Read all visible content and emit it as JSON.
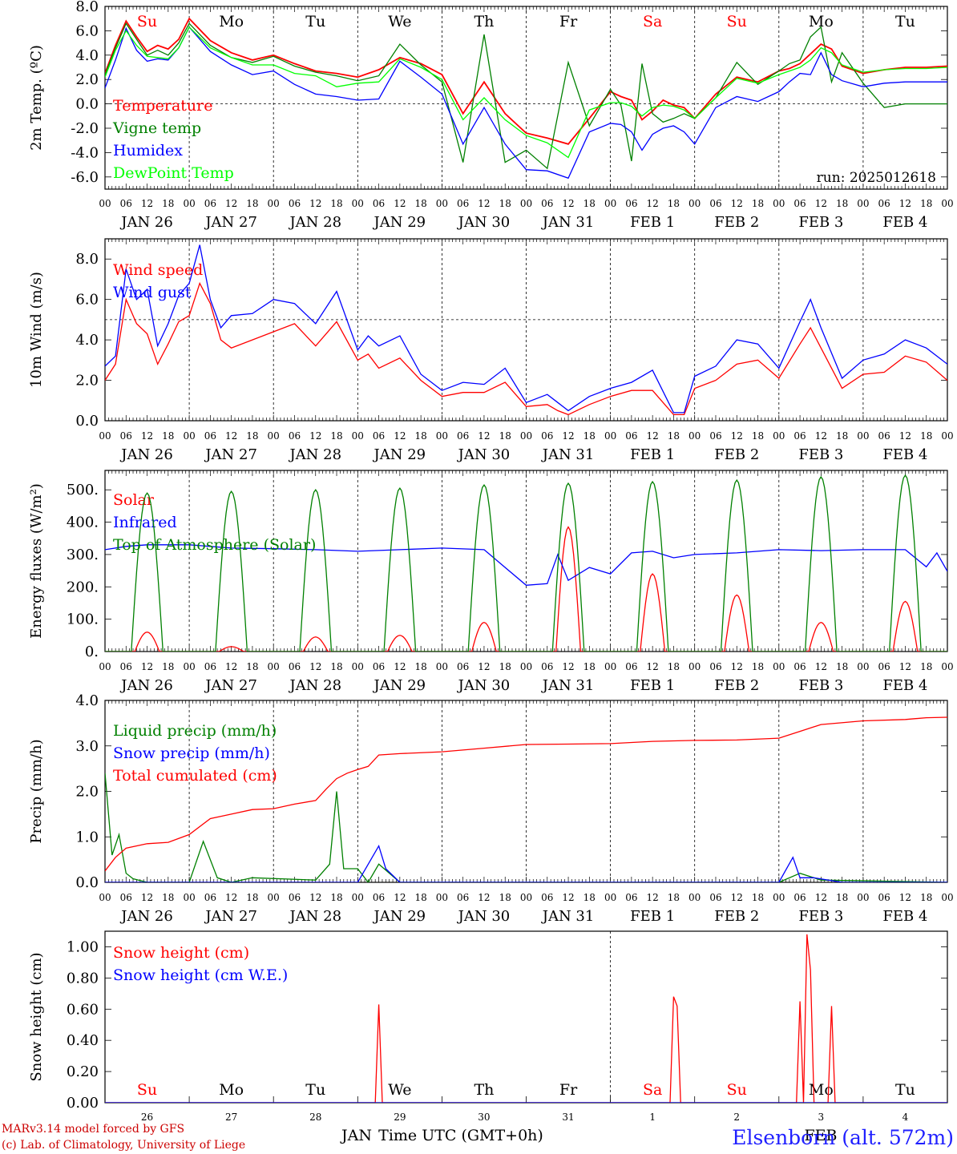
{
  "run_label": "run: 2025012618",
  "station": "Elsenborn (alt. 572m)",
  "credits": [
    "MARv3.14 model forced by GFS",
    "(c) Lab. of Climatology, University of Liege"
  ],
  "xaxis": {
    "hour_labels": [
      "00",
      "06",
      "12",
      "18"
    ],
    "final_hour_label": "00",
    "date_labels": [
      "JAN 26",
      "JAN 27",
      "JAN 28",
      "JAN 29",
      "JAN 30",
      "JAN 31",
      "FEB  1",
      "FEB  2",
      "FEB  3",
      "FEB  4"
    ],
    "day_names": [
      "Su",
      "Mo",
      "Tu",
      "We",
      "Th",
      "Fr",
      "Sa",
      "Su",
      "Mo",
      "Tu"
    ],
    "weekend_color": "#ff0000",
    "weekday_color": "#000000",
    "bottom_day_numbers": [
      "26",
      "27",
      "28",
      "29",
      "30",
      "31",
      "1",
      "2",
      "3",
      "4"
    ],
    "bottom_month_labels": [
      "JAN",
      "FEB"
    ],
    "bottom_title": "Time UTC (GMT+0h)"
  },
  "chart_data": [
    {
      "type": "line",
      "ylabel": "2m Temp. (ºC)",
      "ylim": [
        -7,
        8
      ],
      "ticks": [
        "-6.0",
        "-4.0",
        "-2.0",
        "0.0",
        "2.0",
        "4.0",
        "6.0",
        "8.0"
      ],
      "tick_values": [
        -6,
        -4,
        -2,
        0,
        2,
        4,
        6,
        8
      ],
      "ref_line": 0,
      "x_hours": [
        0,
        3,
        6,
        9,
        12,
        15,
        18,
        21,
        24,
        30,
        36,
        42,
        48,
        54,
        60,
        66,
        72,
        78,
        84,
        90,
        96,
        102,
        108,
        114,
        120,
        126,
        132,
        138,
        144,
        147,
        150,
        153,
        156,
        159,
        162,
        165,
        168,
        174,
        180,
        186,
        192,
        195,
        198,
        201,
        204,
        207,
        210,
        216,
        222,
        228,
        234,
        240
      ],
      "series": [
        {
          "name": "Temperature",
          "color": "#ff0000",
          "values": [
            2.5,
            4.8,
            6.8,
            5.5,
            4.3,
            4.8,
            4.5,
            5.3,
            7.0,
            5.2,
            4.2,
            3.6,
            4.0,
            3.3,
            2.7,
            2.5,
            2.2,
            2.8,
            3.8,
            3.3,
            2.4,
            -0.8,
            1.8,
            -0.8,
            -2.4,
            -2.8,
            -3.3,
            -1.2,
            1.0,
            0.6,
            0.3,
            -1.3,
            -0.6,
            0.3,
            -0.1,
            -0.3,
            -1.2,
            0.8,
            2.2,
            1.8,
            2.7,
            2.9,
            3.3,
            4.1,
            4.9,
            4.5,
            3.1,
            2.5,
            2.8,
            3.0,
            3.0,
            3.1
          ]
        },
        {
          "name": "Vigne temp",
          "color": "#008000",
          "values": [
            2.4,
            4.6,
            6.6,
            5.3,
            4.0,
            4.4,
            4.0,
            5.0,
            6.6,
            4.8,
            3.8,
            3.4,
            3.9,
            3.1,
            2.6,
            2.3,
            1.9,
            2.3,
            4.9,
            3.2,
            1.8,
            -4.8,
            5.7,
            -4.8,
            -3.8,
            -5.3,
            3.4,
            -1.8,
            1.2,
            -0.1,
            -4.7,
            3.3,
            -0.8,
            -1.5,
            -1.2,
            -0.8,
            -1.2,
            0.5,
            3.4,
            1.6,
            2.7,
            3.3,
            3.6,
            5.5,
            6.3,
            1.8,
            4.2,
            1.7,
            -0.3,
            0.0,
            0.0,
            0.0
          ]
        },
        {
          "name": "Humidex",
          "color": "#0000ff",
          "values": [
            1.3,
            3.6,
            6.2,
            4.4,
            3.5,
            3.7,
            3.6,
            4.6,
            6.3,
            4.3,
            3.2,
            2.4,
            2.7,
            1.6,
            0.8,
            0.6,
            0.3,
            0.4,
            3.5,
            2.2,
            0.8,
            -3.3,
            -0.3,
            -3.3,
            -5.4,
            -5.5,
            -6.1,
            -2.3,
            -1.6,
            -1.7,
            -2.3,
            -3.8,
            -2.5,
            -2.0,
            -1.8,
            -2.3,
            -3.3,
            -0.3,
            0.6,
            0.2,
            1.0,
            1.8,
            2.5,
            2.4,
            4.2,
            2.4,
            1.9,
            1.4,
            1.7,
            1.8,
            1.8,
            1.8
          ]
        },
        {
          "name": "DewPoint Temp",
          "color": "#00ff00",
          "values": [
            2.2,
            4.4,
            6.0,
            4.8,
            3.9,
            3.8,
            3.7,
            4.6,
            6.3,
            4.6,
            3.8,
            3.2,
            3.2,
            2.5,
            2.3,
            1.4,
            1.7,
            1.8,
            3.7,
            3.0,
            2.0,
            -1.3,
            0.5,
            -1.3,
            -2.6,
            -3.2,
            -4.4,
            -0.5,
            0.1,
            0.1,
            -0.2,
            -1.0,
            -0.3,
            -0.1,
            -0.2,
            -0.5,
            -1.2,
            0.5,
            2.1,
            1.7,
            2.4,
            2.7,
            3.0,
            3.6,
            4.6,
            4.2,
            3.2,
            2.6,
            2.8,
            2.9,
            2.9,
            3.0
          ]
        }
      ],
      "legend_placement": "top-left"
    },
    {
      "type": "line",
      "ylabel": "10m Wind (m/s)",
      "ylim": [
        0,
        9
      ],
      "ticks": [
        "0.0",
        "2.0",
        "4.0",
        "6.0",
        "8.0"
      ],
      "tick_values": [
        0,
        2,
        4,
        6,
        8
      ],
      "ref_line": 5,
      "x_hours": [
        0,
        3,
        6,
        9,
        12,
        15,
        18,
        21,
        24,
        27,
        30,
        33,
        36,
        42,
        48,
        54,
        60,
        66,
        72,
        75,
        78,
        84,
        90,
        96,
        102,
        108,
        114,
        120,
        126,
        129,
        132,
        138,
        144,
        150,
        156,
        162,
        165,
        168,
        174,
        180,
        186,
        192,
        198,
        201,
        204,
        210,
        216,
        222,
        228,
        234,
        240
      ],
      "series": [
        {
          "name": "Wind speed",
          "color": "#ff0000",
          "values": [
            2.0,
            2.8,
            6.0,
            4.8,
            4.3,
            2.8,
            3.8,
            4.9,
            5.2,
            6.8,
            5.8,
            4.0,
            3.6,
            4.0,
            4.4,
            4.8,
            3.7,
            4.9,
            3.0,
            3.3,
            2.6,
            3.1,
            2.0,
            1.2,
            1.4,
            1.4,
            1.9,
            0.7,
            0.8,
            0.5,
            0.3,
            0.8,
            1.2,
            1.5,
            1.5,
            0.3,
            0.3,
            1.6,
            2.0,
            2.8,
            3.0,
            2.1,
            3.8,
            4.6,
            3.6,
            1.6,
            2.3,
            2.4,
            3.2,
            2.9,
            2.0
          ]
        },
        {
          "name": "Wind gust",
          "color": "#0000ff",
          "values": [
            2.7,
            3.2,
            7.5,
            6.0,
            6.5,
            3.7,
            4.8,
            6.2,
            6.8,
            8.7,
            6.0,
            4.6,
            5.2,
            5.3,
            6.0,
            5.8,
            4.8,
            6.4,
            3.5,
            4.2,
            3.7,
            4.2,
            2.3,
            1.5,
            1.9,
            1.8,
            2.6,
            0.9,
            1.3,
            0.9,
            0.5,
            1.2,
            1.6,
            1.9,
            2.5,
            0.4,
            0.4,
            2.2,
            2.7,
            4.0,
            3.8,
            2.6,
            4.9,
            6.0,
            4.6,
            2.1,
            3.0,
            3.3,
            4.0,
            3.6,
            2.8
          ]
        }
      ],
      "legend_placement": "top-left"
    },
    {
      "type": "line",
      "ylabel": "Energy fluxes (W/m²)",
      "ylim": [
        0,
        560
      ],
      "ticks": [
        "0.",
        "100.",
        "200.",
        "300.",
        "400.",
        "500."
      ],
      "tick_values": [
        0,
        100,
        200,
        300,
        400,
        500
      ],
      "series": [
        {
          "name": "Solar",
          "color": "#ff0000",
          "peaks": [
            60,
            15,
            45,
            50,
            90,
            385,
            240,
            175,
            90,
            155
          ]
        },
        {
          "name": "Infrared",
          "color": "#0000ff",
          "x_hours": [
            0,
            6,
            12,
            24,
            36,
            48,
            60,
            72,
            84,
            96,
            108,
            120,
            126,
            129,
            132,
            138,
            144,
            150,
            156,
            162,
            168,
            180,
            192,
            204,
            216,
            228,
            234,
            237,
            240
          ],
          "values": [
            315,
            325,
            330,
            330,
            320,
            318,
            315,
            310,
            315,
            320,
            315,
            205,
            210,
            300,
            220,
            260,
            240,
            305,
            310,
            290,
            300,
            305,
            315,
            312,
            315,
            315,
            262,
            305,
            248
          ]
        },
        {
          "name": "Top of Atmosphere (Solar)",
          "color": "#008000",
          "peaks": [
            490,
            495,
            500,
            505,
            515,
            520,
            525,
            530,
            540,
            545
          ]
        }
      ],
      "legend_placement": "top-left"
    },
    {
      "type": "line",
      "ylabel": "Precip (mm/h)",
      "ylim": [
        0,
        4
      ],
      "ticks": [
        "0.0",
        "1.0",
        "2.0",
        "3.0",
        "4.0"
      ],
      "tick_values": [
        0,
        1,
        2,
        3,
        4
      ],
      "series": [
        {
          "name": "Liquid precip (mm/h)",
          "color": "#008000",
          "x_hours": [
            0,
            2,
            4,
            6,
            8,
            12,
            24,
            28,
            32,
            36,
            42,
            60,
            64,
            66,
            68,
            72,
            75,
            78,
            84,
            96,
            120,
            144,
            192,
            198,
            204,
            240
          ],
          "values": [
            2.4,
            0.6,
            1.05,
            0.2,
            0.08,
            0.0,
            0.0,
            0.9,
            0.1,
            0.0,
            0.1,
            0.05,
            0.4,
            2.0,
            0.3,
            0.3,
            0.0,
            0.4,
            0.0,
            0.0,
            0.0,
            0.0,
            0.0,
            0.2,
            0.05,
            0.0
          ]
        },
        {
          "name": "Snow precip (mm/h)",
          "color": "#0000ff",
          "x_hours": [
            0,
            72,
            78,
            80,
            84,
            120,
            192,
            196,
            198,
            202,
            210,
            240
          ],
          "values": [
            0.0,
            0.0,
            0.8,
            0.3,
            0.0,
            0.0,
            0.0,
            0.55,
            0.1,
            0.1,
            0.0,
            0.0
          ]
        },
        {
          "name": "Total cumulated (cm)",
          "color": "#ff0000",
          "x_hours": [
            0,
            3,
            6,
            12,
            18,
            24,
            30,
            36,
            42,
            48,
            54,
            60,
            63,
            66,
            69,
            72,
            75,
            78,
            84,
            96,
            108,
            120,
            132,
            144,
            156,
            168,
            180,
            192,
            198,
            204,
            216,
            228,
            234,
            240
          ],
          "values": [
            0.25,
            0.55,
            0.75,
            0.85,
            0.88,
            1.05,
            1.4,
            1.5,
            1.6,
            1.62,
            1.72,
            1.8,
            2.05,
            2.28,
            2.4,
            2.48,
            2.55,
            2.8,
            2.83,
            2.87,
            2.95,
            3.03,
            3.04,
            3.05,
            3.1,
            3.12,
            3.13,
            3.17,
            3.32,
            3.47,
            3.55,
            3.58,
            3.62,
            3.63
          ]
        }
      ],
      "legend_placement": "top-left"
    },
    {
      "type": "line",
      "ylabel": "Snow height (cm)",
      "ylim": [
        0,
        1.1
      ],
      "ticks": [
        "0.00",
        "0.20",
        "0.40",
        "0.60",
        "0.80",
        "1.00"
      ],
      "tick_values": [
        0,
        0.2,
        0.4,
        0.6,
        0.8,
        1.0
      ],
      "series": [
        {
          "name": "Snow height (cm)",
          "color": "#ff0000",
          "x_hours": [
            0,
            77,
            78,
            79,
            120,
            161,
            162,
            163,
            164,
            197,
            198,
            199,
            200,
            201,
            202,
            203,
            206,
            207,
            208,
            240
          ],
          "values": [
            0,
            0,
            0.63,
            0,
            0,
            0,
            0.68,
            0.62,
            0,
            0,
            0.65,
            0,
            1.08,
            0.85,
            0,
            0,
            0,
            0.62,
            0,
            0
          ]
        },
        {
          "name": "Snow height (cm W.E.)",
          "color": "#0000ff",
          "x_hours": [
            0,
            240
          ],
          "values": [
            0,
            0
          ]
        }
      ],
      "legend_placement": "top-left"
    }
  ]
}
